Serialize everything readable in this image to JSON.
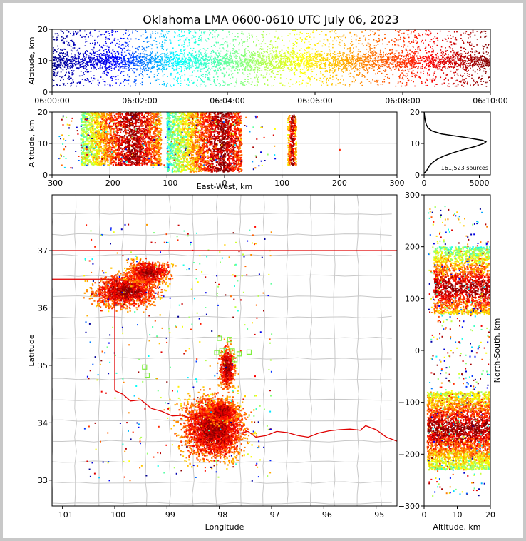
{
  "chart_data": [
    {
      "type": "scatter",
      "panel": "altitude-time",
      "title": "Oklahoma LMA 0600-0610 UTC July 06, 2023",
      "ylabel": "Altitude, km",
      "xlim": [
        "06:00:00",
        "06:10:00"
      ],
      "ylim": [
        0,
        20
      ],
      "x_ticks": [
        "06:00:00",
        "06:02:00",
        "06:04:00",
        "06:06:00",
        "06:08:00",
        "06:10:00"
      ],
      "y_ticks": [
        "0",
        "10",
        "20"
      ],
      "color_encoding": "time (blue to dark red)"
    },
    {
      "type": "scatter",
      "panel": "east-west-altitude",
      "xlabel": "East-West, km",
      "ylabel": "Altitude, km",
      "xlim": [
        -300,
        300
      ],
      "ylim": [
        0,
        20
      ],
      "x_ticks": [
        "−300",
        "−200",
        "−100",
        "0",
        "100",
        "200",
        "300"
      ],
      "y_ticks": [
        "0",
        "10",
        "20"
      ],
      "clusters_km": [
        {
          "x_range": [
            -250,
            -110
          ],
          "alt_range": [
            3,
            20
          ],
          "peak_x": -160
        },
        {
          "x_range": [
            -100,
            30
          ],
          "alt_range": [
            1,
            20
          ],
          "peak_x": -5
        },
        {
          "x_range": [
            110,
            125
          ],
          "alt_range": [
            3,
            19
          ],
          "peak_x": 118
        }
      ]
    },
    {
      "type": "line",
      "panel": "altitude-histogram",
      "annotation": "161,523 sources",
      "xlim": [
        0,
        6000
      ],
      "ylim": [
        0,
        20
      ],
      "x_ticks": [
        "0",
        "5000"
      ],
      "y_ticks": [
        "0",
        "10",
        "20"
      ],
      "profile": [
        {
          "alt": 0.5,
          "count": 0
        },
        {
          "alt": 1,
          "count": 150
        },
        {
          "alt": 2,
          "count": 350
        },
        {
          "alt": 3,
          "count": 500
        },
        {
          "alt": 4,
          "count": 800
        },
        {
          "alt": 5,
          "count": 1200
        },
        {
          "alt": 6,
          "count": 1800
        },
        {
          "alt": 7,
          "count": 2600
        },
        {
          "alt": 8,
          "count": 3500
        },
        {
          "alt": 9,
          "count": 4600
        },
        {
          "alt": 10,
          "count": 5400
        },
        {
          "alt": 10.5,
          "count": 5600
        },
        {
          "alt": 11,
          "count": 5300
        },
        {
          "alt": 12,
          "count": 3600
        },
        {
          "alt": 13,
          "count": 1600
        },
        {
          "alt": 14,
          "count": 700
        },
        {
          "alt": 15,
          "count": 350
        },
        {
          "alt": 16,
          "count": 200
        },
        {
          "alt": 17,
          "count": 120
        },
        {
          "alt": 18,
          "count": 70
        },
        {
          "alt": 19,
          "count": 30
        },
        {
          "alt": 20,
          "count": 0
        }
      ]
    },
    {
      "type": "scatter",
      "panel": "plan-view-map",
      "xlabel": "Longitude",
      "ylabel": "Latitude",
      "xlim": [
        -101.2,
        -94.6
      ],
      "ylim": [
        32.55,
        37.97
      ],
      "x_ticks": [
        "−101",
        "−100",
        "−99",
        "−98",
        "−97",
        "−96",
        "−95"
      ],
      "y_ticks": [
        "33",
        "34",
        "35",
        "36",
        "37"
      ],
      "clusters_lonlat": [
        {
          "lon": -98.1,
          "lat": 33.9,
          "spread_lon": 0.45,
          "spread_lat": 0.4
        },
        {
          "lon": -97.95,
          "lat": 34.2,
          "spread_lon": 0.2,
          "spread_lat": 0.15
        },
        {
          "lon": -99.8,
          "lat": 36.3,
          "spread_lon": 0.45,
          "spread_lat": 0.22
        },
        {
          "lon": -99.35,
          "lat": 36.62,
          "spread_lon": 0.3,
          "spread_lat": 0.15
        },
        {
          "lon": -97.85,
          "lat": 34.95,
          "spread_lon": 0.12,
          "spread_lat": 0.3
        }
      ],
      "station_markers_lonlat": [
        [
          -98.0,
          35.47
        ],
        [
          -97.8,
          35.45
        ],
        [
          -98.05,
          35.22
        ],
        [
          -97.95,
          35.26
        ],
        [
          -97.75,
          35.25
        ],
        [
          -97.62,
          35.2
        ],
        [
          -97.43,
          35.23
        ],
        [
          -99.43,
          34.97
        ],
        [
          -99.38,
          34.83
        ],
        [
          -97.7,
          35.1
        ]
      ]
    },
    {
      "type": "scatter",
      "panel": "altitude-north-south",
      "xlabel": "Altitude, km",
      "ylabel": "North-South, km",
      "xlim": [
        0,
        20
      ],
      "ylim": [
        -300,
        300
      ],
      "x_ticks": [
        "0",
        "10",
        "20"
      ],
      "y_ticks": [
        "−300",
        "−200",
        "−100",
        "0",
        "100",
        "200",
        "300"
      ],
      "clusters_km": [
        {
          "ns_range": [
            -230,
            -80
          ],
          "alt_range": [
            1,
            20
          ],
          "peak_ns": -150
        },
        {
          "ns_range": [
            70,
            200
          ],
          "alt_range": [
            3,
            20
          ],
          "peak_ns": 120
        }
      ]
    }
  ],
  "colors": {
    "ok_border": "#e00000",
    "county_lines": "#c8c8c8",
    "station_marker": "#80ee40",
    "time_scale": [
      "#00008f",
      "#0000ff",
      "#00ffff",
      "#80ff80",
      "#ffff00",
      "#ff8000",
      "#ff0000",
      "#800000"
    ]
  }
}
